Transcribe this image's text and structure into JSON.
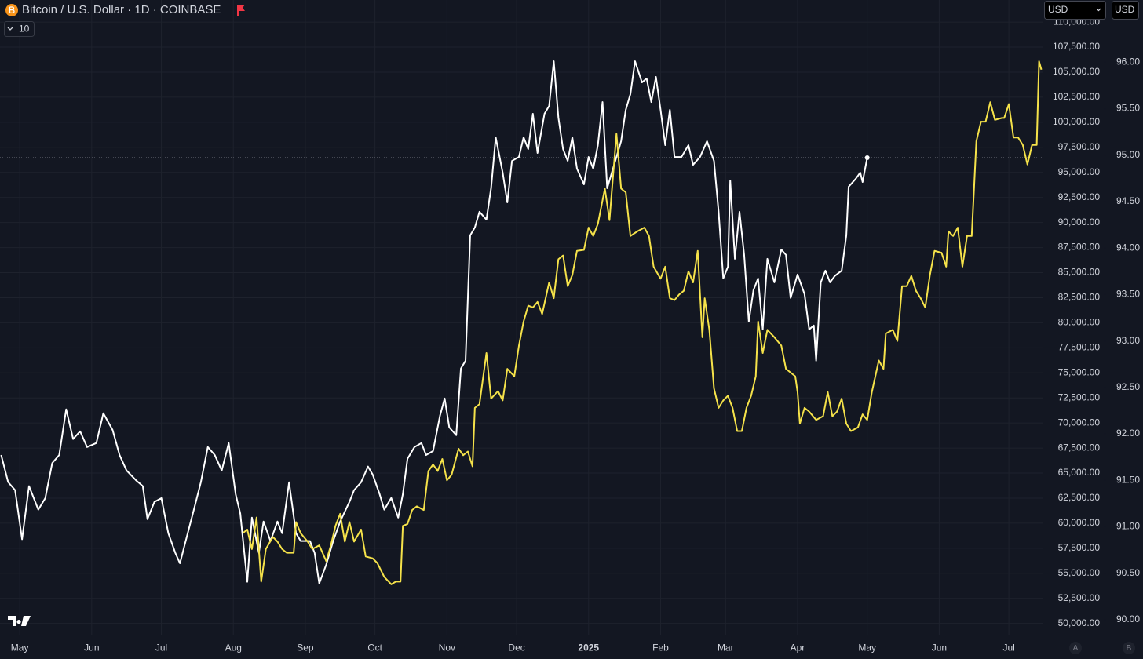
{
  "header": {
    "title": "Bitcoin / U.S. Dollar · 1D · COINBASE",
    "indicator_count": "10",
    "currency_menu": "USD",
    "currency_scale": "USD"
  },
  "footer": {
    "scale_a": "A",
    "scale_b": "B"
  },
  "chart_data": {
    "type": "line",
    "grid": true,
    "xlim": [
      -8.5,
      440.5
    ],
    "xticks": [
      {
        "value": 0,
        "label": "May"
      },
      {
        "value": 31,
        "label": "Jun"
      },
      {
        "value": 61,
        "label": "Jul"
      },
      {
        "value": 92,
        "label": "Aug"
      },
      {
        "value": 123,
        "label": "Sep"
      },
      {
        "value": 153,
        "label": "Oct"
      },
      {
        "value": 184,
        "label": "Nov"
      },
      {
        "value": 214,
        "label": "Dec"
      },
      {
        "value": 245,
        "label": "2025"
      },
      {
        "value": 276,
        "label": "Feb"
      },
      {
        "value": 304,
        "label": "Mar"
      },
      {
        "value": 335,
        "label": "Apr"
      },
      {
        "value": 365,
        "label": "May"
      },
      {
        "value": 396,
        "label": "Jun"
      },
      {
        "value": 426,
        "label": "Jul"
      }
    ],
    "ylim": [
      48800,
      112200
    ],
    "yticks": [
      {
        "value": 50000,
        "label": "50,000.00"
      },
      {
        "value": 52500,
        "label": "52,500.00"
      },
      {
        "value": 55000,
        "label": "55,000.00"
      },
      {
        "value": 57500,
        "label": "57,500.00"
      },
      {
        "value": 60000,
        "label": "60,000.00"
      },
      {
        "value": 62500,
        "label": "62,500.00"
      },
      {
        "value": 65000,
        "label": "65,000.00"
      },
      {
        "value": 67500,
        "label": "67,500.00"
      },
      {
        "value": 70000,
        "label": "70,000.00"
      },
      {
        "value": 72500,
        "label": "72,500.00"
      },
      {
        "value": 75000,
        "label": "75,000.00"
      },
      {
        "value": 77500,
        "label": "77,500.00"
      },
      {
        "value": 80000,
        "label": "80,000.00"
      },
      {
        "value": 82500,
        "label": "82,500.00"
      },
      {
        "value": 85000,
        "label": "85,000.00"
      },
      {
        "value": 87500,
        "label": "87,500.00"
      },
      {
        "value": 90000,
        "label": "90,000.00"
      },
      {
        "value": 92500,
        "label": "92,500.00"
      },
      {
        "value": 95000,
        "label": "95,000.00"
      },
      {
        "value": 97500,
        "label": "97,500.00"
      },
      {
        "value": 100000,
        "label": "100,000.00"
      },
      {
        "value": 102500,
        "label": "102,500.00"
      },
      {
        "value": 105000,
        "label": "105,000.00"
      },
      {
        "value": 107500,
        "label": "107,500.00"
      },
      {
        "value": 110000,
        "label": "110,000.00"
      }
    ],
    "y2lim": [
      89.83,
      96.67
    ],
    "y2ticks": [
      {
        "value": 90,
        "label": "90.00"
      },
      {
        "value": 90.5,
        "label": "90.50"
      },
      {
        "value": 91,
        "label": "91.00"
      },
      {
        "value": 91.5,
        "label": "91.50"
      },
      {
        "value": 92,
        "label": "92.00"
      },
      {
        "value": 92.5,
        "label": "92.50"
      },
      {
        "value": 93,
        "label": "93.00"
      },
      {
        "value": 93.5,
        "label": "93.50"
      },
      {
        "value": 94,
        "label": "94.00"
      },
      {
        "value": 94.5,
        "label": "94.50"
      },
      {
        "value": 95,
        "label": "95.00"
      },
      {
        "value": 95.5,
        "label": "95.50"
      },
      {
        "value": 96,
        "label": "96.00"
      }
    ],
    "series": [
      {
        "color": "#ffffff",
        "axis": "y",
        "x": [
          -8,
          -5,
          -2,
          1,
          4,
          8,
          11,
          14,
          17,
          20,
          23,
          26,
          29,
          33,
          36,
          40,
          43,
          46,
          50,
          53,
          55,
          58,
          61,
          64,
          67,
          69,
          71,
          75,
          78,
          81,
          84,
          87,
          90,
          93,
          95,
          98,
          100,
          103,
          105,
          108,
          111,
          113,
          116,
          119,
          121,
          125,
          127,
          129,
          132,
          135,
          138,
          142,
          144,
          147,
          150,
          152,
          155,
          157,
          160,
          163,
          165,
          167,
          170,
          173,
          175,
          178,
          181,
          183,
          185,
          188,
          190,
          192,
          194,
          196,
          198,
          201,
          203,
          205,
          208,
          210,
          212,
          215,
          217,
          219,
          221,
          223,
          226,
          228,
          230,
          232,
          234,
          236,
          238,
          240,
          243,
          245,
          247,
          249,
          251,
          253,
          256,
          259,
          261,
          263,
          265,
          268,
          270,
          272,
          274,
          276,
          278,
          280,
          282,
          285,
          288,
          290,
          293,
          296,
          299,
          301,
          303,
          305,
          306,
          308,
          310,
          312,
          314,
          316,
          318,
          320,
          322,
          325,
          328,
          330,
          332,
          335,
          338,
          340,
          342,
          343,
          345,
          347,
          349,
          351,
          354,
          356,
          357,
          360,
          362,
          363,
          365
        ],
        "values": [
          66800,
          64100,
          63300,
          58400,
          63700,
          61350,
          62500,
          66000,
          66800,
          71360,
          68400,
          69170,
          67600,
          68000,
          70970,
          69300,
          66800,
          65260,
          64300,
          63700,
          60400,
          62130,
          62500,
          59000,
          57040,
          56000,
          57800,
          61350,
          64080,
          67600,
          66800,
          65260,
          68000,
          62900,
          60950,
          54150,
          60560,
          57040,
          60170,
          58220,
          60170,
          59000,
          64080,
          59000,
          58220,
          58220,
          57040,
          53990,
          55870,
          58220,
          60170,
          62130,
          63300,
          64080,
          65650,
          64860,
          62900,
          61350,
          62520,
          60560,
          62900,
          66430,
          67600,
          68000,
          66800,
          67200,
          70730,
          72450,
          69560,
          68780,
          75430,
          76210,
          88720,
          89500,
          91070,
          90290,
          93420,
          98500,
          94980,
          92010,
          96150,
          96540,
          98500,
          97330,
          100850,
          96940,
          100850,
          101630,
          106090,
          100460,
          97330,
          96150,
          98500,
          95370,
          93810,
          96540,
          95370,
          97720,
          102020,
          93420,
          95760,
          98110,
          101240,
          102800,
          106090,
          103980,
          104370,
          102020,
          104530,
          101240,
          97720,
          101240,
          96540,
          96540,
          97720,
          95760,
          96540,
          98110,
          96150,
          91070,
          84420,
          85600,
          94200,
          86380,
          91070,
          86770,
          80120,
          83250,
          84420,
          79340,
          86380,
          84030,
          87310,
          86770,
          82470,
          84810,
          82860,
          79340,
          79730,
          76210,
          84030,
          85200,
          84030,
          84660,
          85200,
          88720,
          93570,
          94350,
          94980,
          94040,
          96470
        ]
      },
      {
        "color": "#f5e24a",
        "axis": "y2",
        "x": [
          96,
          98,
          100,
          102,
          104,
          106,
          109,
          111,
          113,
          115,
          118,
          119,
          121,
          124,
          126,
          129,
          132,
          134,
          136,
          138,
          140,
          142,
          144,
          147,
          149,
          152,
          154,
          157,
          160,
          162,
          164,
          165,
          167,
          169,
          171,
          174,
          176,
          178,
          180,
          182,
          184,
          186,
          189,
          191,
          193,
          195,
          196,
          198,
          201,
          203,
          206,
          208,
          210,
          213,
          215,
          217,
          219,
          221,
          223,
          225,
          228,
          230,
          232,
          234,
          236,
          238,
          240,
          243,
          245,
          247,
          249,
          252,
          254,
          257,
          259,
          261,
          263,
          266,
          269,
          271,
          273,
          276,
          278,
          280,
          282,
          284,
          286,
          288,
          290,
          292,
          294,
          295,
          297,
          299,
          301,
          303,
          305,
          307,
          309,
          311,
          313,
          315,
          317,
          318,
          320,
          322,
          325,
          328,
          330,
          332,
          334,
          335,
          336,
          338,
          340,
          343,
          346,
          348,
          350,
          352,
          354,
          356,
          358,
          361,
          363,
          365,
          367,
          370,
          372,
          373,
          376,
          378,
          380,
          382,
          384,
          386,
          388,
          390,
          392,
          394,
          397,
          399,
          400,
          402,
          404,
          406,
          408,
          410,
          412,
          414,
          416,
          418,
          420,
          423,
          424,
          426,
          428,
          430,
          432,
          434,
          436,
          438,
          439,
          440
        ],
        "values": [
          90.93,
          90.97,
          90.76,
          91.1,
          90.41,
          90.76,
          90.89,
          90.84,
          90.76,
          90.72,
          90.72,
          91.05,
          90.93,
          90.84,
          90.76,
          90.8,
          90.63,
          90.8,
          91.01,
          91.14,
          90.84,
          91.05,
          90.84,
          90.97,
          90.68,
          90.66,
          90.61,
          90.46,
          90.38,
          90.41,
          90.41,
          91.01,
          91.03,
          91.18,
          91.22,
          91.18,
          91.6,
          91.67,
          91.6,
          91.73,
          91.5,
          91.56,
          91.84,
          91.77,
          91.81,
          91.65,
          92.28,
          92.32,
          92.87,
          92.38,
          92.46,
          92.36,
          92.7,
          92.62,
          92.95,
          93.21,
          93.38,
          93.36,
          93.42,
          93.29,
          93.63,
          93.46,
          93.88,
          93.92,
          93.59,
          93.71,
          93.97,
          93.98,
          94.22,
          94.13,
          94.26,
          94.64,
          94.3,
          95.23,
          94.64,
          94.6,
          94.13,
          94.18,
          94.22,
          94.13,
          93.8,
          93.67,
          93.8,
          93.46,
          93.44,
          93.5,
          93.54,
          93.75,
          93.63,
          93.97,
          93.04,
          93.46,
          93.12,
          92.49,
          92.28,
          92.36,
          92.41,
          92.28,
          92.03,
          92.03,
          92.28,
          92.41,
          92.62,
          93.21,
          92.87,
          93.12,
          93.04,
          92.95,
          92.7,
          92.66,
          92.62,
          92.45,
          92.11,
          92.28,
          92.24,
          92.15,
          92.19,
          92.45,
          92.19,
          92.24,
          92.38,
          92.11,
          92.03,
          92.07,
          92.21,
          92.15,
          92.45,
          92.79,
          92.7,
          93.08,
          93.12,
          93.0,
          93.59,
          93.59,
          93.7,
          93.54,
          93.46,
          93.36,
          93.71,
          93.97,
          93.95,
          93.8,
          94.18,
          94.13,
          94.22,
          93.8,
          94.13,
          94.13,
          95.15,
          95.36,
          95.36,
          95.57,
          95.38,
          95.4,
          95.4,
          95.55,
          95.19,
          95.19,
          95.11,
          94.9,
          95.11,
          95.11,
          96.01,
          95.92
        ]
      }
    ]
  }
}
